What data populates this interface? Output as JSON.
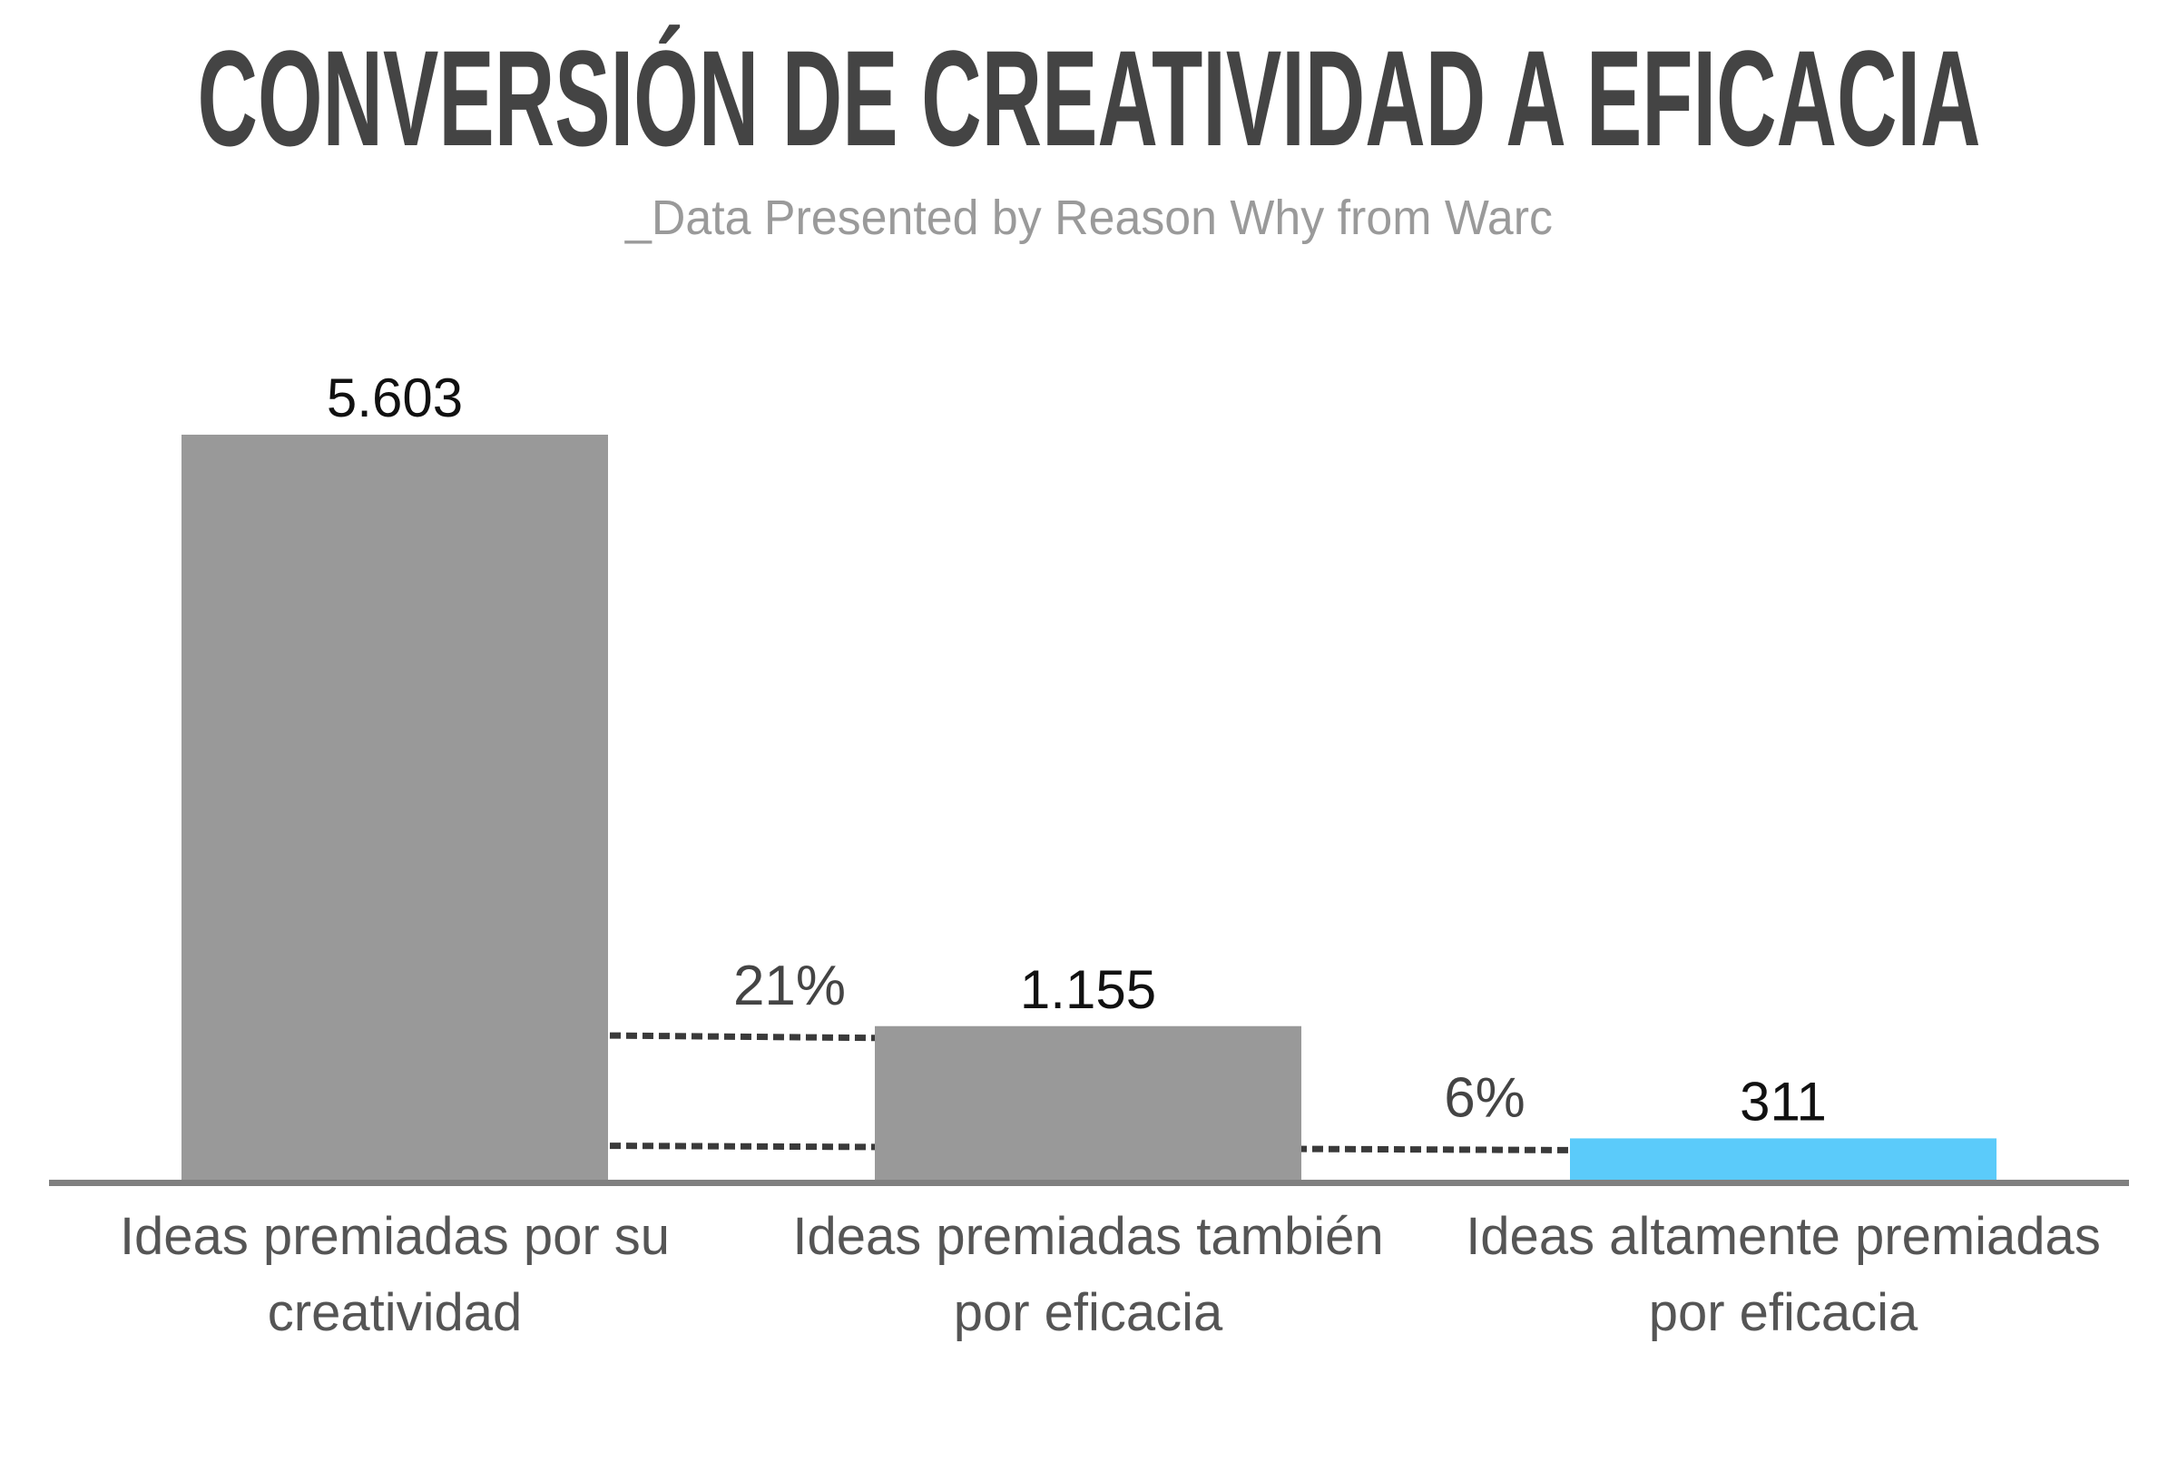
{
  "chart_data": {
    "type": "bar",
    "title": "CONVERSIÓN DE CREATIVIDAD A EFICACIA",
    "subtitle": "_Data Presented by Reason Why from Warc",
    "categories": [
      [
        "Ideas premiadas por su",
        "creatividad"
      ],
      [
        "Ideas premiadas también",
        "por eficacia"
      ],
      [
        "Ideas altamente premiadas",
        "por eficacia"
      ]
    ],
    "values": [
      5603,
      1155,
      311
    ],
    "value_labels": [
      "5.603",
      "1.155",
      "311"
    ],
    "bar_colors": [
      "#999999",
      "#999999",
      "#5bcbfa"
    ],
    "conversions": [
      {
        "label": "21%",
        "from": 0,
        "to": 1
      },
      {
        "label": "6%",
        "from": 0,
        "to": 2
      }
    ],
    "xlabel": "",
    "ylabel": "",
    "ylim": [
      0,
      5603
    ],
    "grid": false,
    "axis_color": "#808080",
    "dash_color": "#3a3a3a"
  }
}
